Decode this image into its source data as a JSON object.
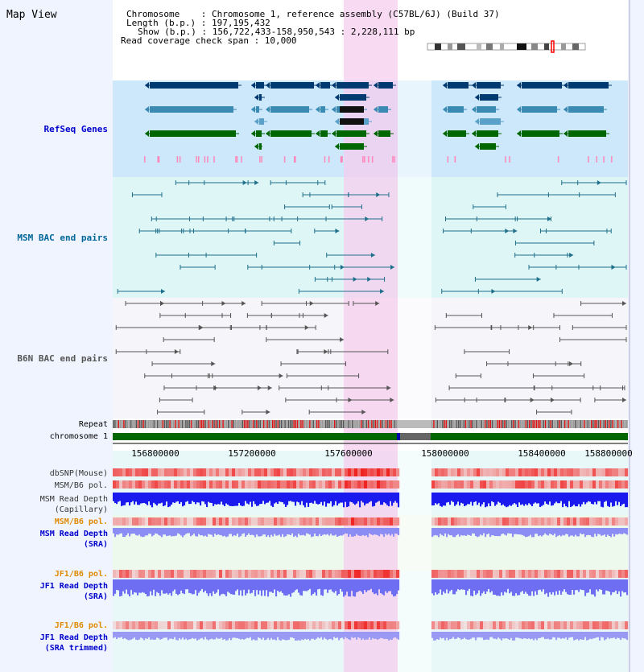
{
  "view_title": "Map View",
  "header_info": {
    "chromosome_line": "Chromosome    : Chromosome 1, reference assembly (C57BL/6J) (Build 37)",
    "length_line": "Length (b.p.) : 197,195,432",
    "show_line": "Show (b.p.) : 156,722,433-158,950,543 : 2,228,111 bp",
    "read_line": "Read coverage check span : 10,000"
  },
  "track_labels": {
    "refseq": "RefSeq Genes",
    "msm_bac": "MSM BAC end pairs",
    "b6n_bac": "B6N BAC end pairs",
    "repeat": "Repeat",
    "chromosome": "chromosome 1",
    "dbsnp": "dbSNP(Mouse)",
    "msm_b6_pol_1": "MSM/B6 pol.",
    "msm_read_depth_cap_1": "MSM Read Depth",
    "msm_read_depth_cap_2": "(Capillary)",
    "msm_b6_pol_2": "MSM/B6 pol.",
    "msm_read_depth_sra_1": "MSM Read Depth",
    "msm_read_depth_sra_2": "(SRA)",
    "jf1_b6_pol_1": "JF1/B6 pol.",
    "jf1_read_depth_sra_1": "JF1 Read Depth",
    "jf1_read_depth_sra_2": "(SRA)",
    "jf1_b6_pol_2": "JF1/B6 pol.",
    "jf1_read_depth_trim_1": "JF1 Read Depth",
    "jf1_read_depth_trim_2": "(SRA trimmed)"
  },
  "axis_ticks": [
    "156800000",
    "157200000",
    "157600000",
    "158000000",
    "158400000",
    "158800000"
  ],
  "colors": {
    "refseq_label": "#0000cc",
    "msm_label": "#006699",
    "b6n_label": "#555555",
    "pol_label_orange": "#e08a00",
    "depth_label_blue": "#0000cc",
    "highlight_pink": "#f8d2f0",
    "chromosome_green": "#006600",
    "refseq_bg": "#cce8fa",
    "bac_bg": "#def6f6"
  }
}
